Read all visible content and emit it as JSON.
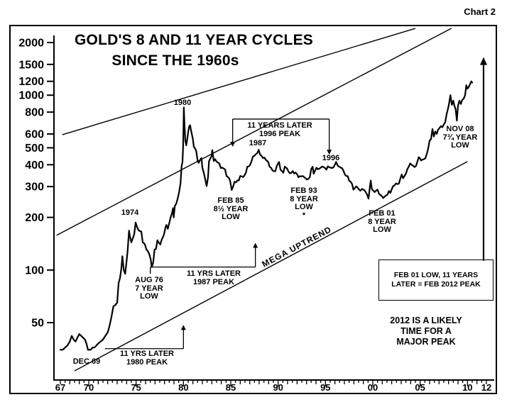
{
  "chart_label": "Chart 2",
  "chart_data": {
    "type": "line",
    "title": "GOLD'S 8 AND 11 YEAR CYCLES SINCE THE 1960s",
    "title_line1": "GOLD'S 8 AND 11 YEAR CYCLES",
    "title_line2": "SINCE THE 1960s",
    "xlabel": "",
    "ylabel": "",
    "y_axis": {
      "scale": "log",
      "ticks": [
        2000,
        1500,
        1200,
        1000,
        800,
        600,
        500,
        400,
        300,
        200,
        100,
        50
      ]
    },
    "x_axis": {
      "range": [
        1967,
        2012
      ],
      "ticks": [
        {
          "label": "67",
          "year": 1967
        },
        {
          "label": "70",
          "year": 1970
        },
        {
          "label": "75",
          "year": 1975
        },
        {
          "label": "80",
          "year": 1980
        },
        {
          "label": "85",
          "year": 1985
        },
        {
          "label": "90",
          "year": 1990
        },
        {
          "label": "95",
          "year": 1995
        },
        {
          "label": "00",
          "year": 2000
        },
        {
          "label": "05",
          "year": 2005
        },
        {
          "label": "10",
          "year": 2010
        },
        {
          "label": "12",
          "year": 2012
        }
      ]
    },
    "series": [
      [
        1967.0,
        35
      ],
      [
        1967.25,
        35
      ],
      [
        1967.5,
        36
      ],
      [
        1967.75,
        37
      ],
      [
        1968.0,
        39
      ],
      [
        1968.2,
        42
      ],
      [
        1968.4,
        40
      ],
      [
        1968.6,
        39
      ],
      [
        1968.8,
        41
      ],
      [
        1969.0,
        43
      ],
      [
        1969.2,
        42
      ],
      [
        1969.4,
        41
      ],
      [
        1969.6,
        40
      ],
      [
        1969.75,
        38
      ],
      [
        1969.92,
        35
      ],
      [
        1970.2,
        35
      ],
      [
        1970.4,
        36
      ],
      [
        1970.6,
        36
      ],
      [
        1970.8,
        37
      ],
      [
        1971.0,
        38
      ],
      [
        1971.25,
        39
      ],
      [
        1971.5,
        40
      ],
      [
        1971.75,
        42
      ],
      [
        1972.0,
        44
      ],
      [
        1972.2,
        48
      ],
      [
        1972.4,
        54
      ],
      [
        1972.6,
        62
      ],
      [
        1972.8,
        63
      ],
      [
        1973.0,
        65
      ],
      [
        1973.15,
        84
      ],
      [
        1973.3,
        90
      ],
      [
        1973.45,
        103
      ],
      [
        1973.55,
        120
      ],
      [
        1973.7,
        100
      ],
      [
        1973.85,
        95
      ],
      [
        1973.95,
        107
      ],
      [
        1974.1,
        128
      ],
      [
        1974.25,
        168
      ],
      [
        1974.35,
        155
      ],
      [
        1974.5,
        144
      ],
      [
        1974.65,
        152
      ],
      [
        1974.8,
        160
      ],
      [
        1974.95,
        187
      ],
      [
        1975.1,
        176
      ],
      [
        1975.25,
        169
      ],
      [
        1975.4,
        167
      ],
      [
        1975.55,
        166
      ],
      [
        1975.7,
        144
      ],
      [
        1975.85,
        142
      ],
      [
        1975.95,
        139
      ],
      [
        1976.1,
        131
      ],
      [
        1976.25,
        128
      ],
      [
        1976.4,
        123
      ],
      [
        1976.55,
        115
      ],
      [
        1976.65,
        104
      ],
      [
        1976.8,
        110
      ],
      [
        1976.95,
        131
      ],
      [
        1977.1,
        132
      ],
      [
        1977.25,
        148
      ],
      [
        1977.4,
        143
      ],
      [
        1977.55,
        140
      ],
      [
        1977.7,
        149
      ],
      [
        1977.85,
        155
      ],
      [
        1977.95,
        160
      ],
      [
        1978.1,
        175
      ],
      [
        1978.2,
        181
      ],
      [
        1978.35,
        172
      ],
      [
        1978.5,
        185
      ],
      [
        1978.65,
        200
      ],
      [
        1978.8,
        212
      ],
      [
        1978.9,
        226
      ],
      [
        1978.97,
        200
      ],
      [
        1979.1,
        233
      ],
      [
        1979.25,
        240
      ],
      [
        1979.4,
        257
      ],
      [
        1979.55,
        280
      ],
      [
        1979.7,
        315
      ],
      [
        1979.8,
        392
      ],
      [
        1979.9,
        415
      ],
      [
        1979.97,
        512
      ],
      [
        1980.04,
        850
      ],
      [
        1980.12,
        665
      ],
      [
        1980.2,
        550
      ],
      [
        1980.3,
        517
      ],
      [
        1980.4,
        560
      ],
      [
        1980.5,
        614
      ],
      [
        1980.6,
        660
      ],
      [
        1980.7,
        673
      ],
      [
        1980.8,
        629
      ],
      [
        1980.9,
        595
      ],
      [
        1981.0,
        557
      ],
      [
        1981.1,
        506
      ],
      [
        1981.2,
        499
      ],
      [
        1981.35,
        480
      ],
      [
        1981.5,
        422
      ],
      [
        1981.6,
        410
      ],
      [
        1981.75,
        425
      ],
      [
        1981.9,
        437
      ],
      [
        1982.0,
        384
      ],
      [
        1982.15,
        360
      ],
      [
        1982.3,
        330
      ],
      [
        1982.45,
        302
      ],
      [
        1982.6,
        340
      ],
      [
        1982.7,
        418
      ],
      [
        1982.85,
        436
      ],
      [
        1982.95,
        445
      ],
      [
        1983.05,
        485
      ],
      [
        1983.2,
        420
      ],
      [
        1983.35,
        430
      ],
      [
        1983.5,
        416
      ],
      [
        1983.65,
        412
      ],
      [
        1983.8,
        405
      ],
      [
        1983.95,
        383
      ],
      [
        1984.1,
        385
      ],
      [
        1984.25,
        381
      ],
      [
        1984.4,
        376
      ],
      [
        1984.55,
        345
      ],
      [
        1984.7,
        340
      ],
      [
        1984.85,
        333
      ],
      [
        1984.95,
        320
      ],
      [
        1985.1,
        287
      ],
      [
        1985.25,
        300
      ],
      [
        1985.4,
        320
      ],
      [
        1985.55,
        317
      ],
      [
        1985.7,
        326
      ],
      [
        1985.85,
        325
      ],
      [
        1986.0,
        345
      ],
      [
        1986.15,
        343
      ],
      [
        1986.3,
        340
      ],
      [
        1986.45,
        348
      ],
      [
        1986.6,
        360
      ],
      [
        1986.75,
        390
      ],
      [
        1986.9,
        391
      ],
      [
        1987.05,
        400
      ],
      [
        1987.2,
        420
      ],
      [
        1987.35,
        446
      ],
      [
        1987.5,
        450
      ],
      [
        1987.65,
        460
      ],
      [
        1987.8,
        466
      ],
      [
        1987.95,
        487
      ],
      [
        1988.1,
        457
      ],
      [
        1988.25,
        450
      ],
      [
        1988.4,
        437
      ],
      [
        1988.55,
        440
      ],
      [
        1988.7,
        427
      ],
      [
        1988.85,
        420
      ],
      [
        1988.95,
        415
      ],
      [
        1989.1,
        390
      ],
      [
        1989.25,
        384
      ],
      [
        1989.4,
        371
      ],
      [
        1989.55,
        368
      ],
      [
        1989.7,
        367
      ],
      [
        1989.85,
        392
      ],
      [
        1989.97,
        405
      ],
      [
        1990.1,
        415
      ],
      [
        1990.25,
        375
      ],
      [
        1990.4,
        368
      ],
      [
        1990.55,
        360
      ],
      [
        1990.7,
        390
      ],
      [
        1990.85,
        385
      ],
      [
        1990.95,
        380
      ],
      [
        1991.1,
        366
      ],
      [
        1991.25,
        357
      ],
      [
        1991.4,
        360
      ],
      [
        1991.55,
        368
      ],
      [
        1991.7,
        356
      ],
      [
        1991.85,
        361
      ],
      [
        1992.0,
        354
      ],
      [
        1992.15,
        339
      ],
      [
        1992.3,
        344
      ],
      [
        1992.45,
        343
      ],
      [
        1992.6,
        345
      ],
      [
        1992.75,
        340
      ],
      [
        1992.9,
        335
      ],
      [
        1993.05,
        329
      ],
      [
        1993.2,
        332
      ],
      [
        1993.35,
        340
      ],
      [
        1993.5,
        378
      ],
      [
        1993.65,
        390
      ],
      [
        1993.75,
        355
      ],
      [
        1993.9,
        370
      ],
      [
        1994.05,
        385
      ],
      [
        1994.2,
        377
      ],
      [
        1994.35,
        380
      ],
      [
        1994.5,
        385
      ],
      [
        1994.65,
        391
      ],
      [
        1994.8,
        388
      ],
      [
        1994.95,
        383
      ],
      [
        1995.1,
        375
      ],
      [
        1995.25,
        392
      ],
      [
        1995.4,
        387
      ],
      [
        1995.55,
        385
      ],
      [
        1995.7,
        383
      ],
      [
        1995.85,
        387
      ],
      [
        1996.05,
        405
      ],
      [
        1996.12,
        415
      ],
      [
        1996.3,
        395
      ],
      [
        1996.45,
        390
      ],
      [
        1996.6,
        385
      ],
      [
        1996.75,
        383
      ],
      [
        1996.9,
        369
      ],
      [
        1997.05,
        352
      ],
      [
        1997.2,
        345
      ],
      [
        1997.35,
        344
      ],
      [
        1997.5,
        324
      ],
      [
        1997.65,
        320
      ],
      [
        1997.8,
        311
      ],
      [
        1997.95,
        288
      ],
      [
        1998.1,
        294
      ],
      [
        1998.25,
        301
      ],
      [
        1998.4,
        296
      ],
      [
        1998.55,
        288
      ],
      [
        1998.7,
        284
      ],
      [
        1998.85,
        291
      ],
      [
        1998.97,
        288
      ],
      [
        1999.1,
        287
      ],
      [
        1999.25,
        279
      ],
      [
        1999.4,
        270
      ],
      [
        1999.55,
        256
      ],
      [
        1999.7,
        301
      ],
      [
        1999.78,
        325
      ],
      [
        1999.9,
        290
      ],
      [
        2000.05,
        284
      ],
      [
        2000.2,
        279
      ],
      [
        2000.35,
        285
      ],
      [
        2000.5,
        288
      ],
      [
        2000.65,
        273
      ],
      [
        2000.8,
        269
      ],
      [
        2000.95,
        265
      ],
      [
        2001.1,
        258
      ],
      [
        2001.25,
        263
      ],
      [
        2001.4,
        267
      ],
      [
        2001.55,
        270
      ],
      [
        2001.7,
        283
      ],
      [
        2001.85,
        276
      ],
      [
        2002.0,
        290
      ],
      [
        2002.15,
        302
      ],
      [
        2002.3,
        305
      ],
      [
        2002.45,
        313
      ],
      [
        2002.6,
        310
      ],
      [
        2002.75,
        312
      ],
      [
        2002.9,
        332
      ],
      [
        2003.05,
        352
      ],
      [
        2003.2,
        335
      ],
      [
        2003.35,
        345
      ],
      [
        2003.5,
        356
      ],
      [
        2003.65,
        378
      ],
      [
        2003.8,
        390
      ],
      [
        2003.95,
        407
      ],
      [
        2004.1,
        400
      ],
      [
        2004.25,
        395
      ],
      [
        2004.4,
        388
      ],
      [
        2004.55,
        393
      ],
      [
        2004.7,
        415
      ],
      [
        2004.85,
        442
      ],
      [
        2004.95,
        438
      ],
      [
        2005.1,
        423
      ],
      [
        2005.25,
        428
      ],
      [
        2005.4,
        430
      ],
      [
        2005.55,
        436
      ],
      [
        2005.7,
        460
      ],
      [
        2005.85,
        495
      ],
      [
        2006.0,
        550
      ],
      [
        2006.15,
        560
      ],
      [
        2006.3,
        640
      ],
      [
        2006.45,
        580
      ],
      [
        2006.6,
        620
      ],
      [
        2006.75,
        600
      ],
      [
        2006.9,
        635
      ],
      [
        2007.05,
        650
      ],
      [
        2007.2,
        665
      ],
      [
        2007.35,
        655
      ],
      [
        2007.5,
        680
      ],
      [
        2007.65,
        700
      ],
      [
        2007.8,
        780
      ],
      [
        2007.95,
        840
      ],
      [
        2008.05,
        890
      ],
      [
        2008.2,
        1000
      ],
      [
        2008.35,
        880
      ],
      [
        2008.5,
        930
      ],
      [
        2008.62,
        870
      ],
      [
        2008.75,
        830
      ],
      [
        2008.88,
        715
      ],
      [
        2009.0,
        870
      ],
      [
        2009.15,
        930
      ],
      [
        2009.3,
        890
      ],
      [
        2009.45,
        940
      ],
      [
        2009.6,
        955
      ],
      [
        2009.75,
        1000
      ],
      [
        2009.88,
        1140
      ],
      [
        2010.0,
        1090
      ],
      [
        2010.12,
        1110
      ],
      [
        2010.25,
        1150
      ],
      [
        2010.4,
        1200
      ],
      [
        2010.5,
        1180
      ]
    ],
    "trend_lines": [
      {
        "name": "upper-channel",
        "points": [
          [
            1967.2,
            594
          ],
          [
            2004.5,
            2410
          ]
        ]
      },
      {
        "name": "middle-channel",
        "points": [
          [
            1966.6,
            158
          ],
          [
            2008.3,
            2410
          ]
        ]
      },
      {
        "name": "mega-uptrend",
        "points": [
          [
            1968.5,
            26.5
          ],
          [
            2010.0,
            417
          ]
        ]
      }
    ],
    "brackets": [
      {
        "name": "cycle-1985-to-1996",
        "value": 730,
        "x_from": 1985.2,
        "x_to": 1995.4,
        "arrows": [
          {
            "x": 1985.2,
            "to": 507
          },
          {
            "x": 1995.4,
            "to": 457
          }
        ]
      },
      {
        "name": "cycle-1976-to-1987",
        "value": 104,
        "x_from": 1976.5,
        "x_to": 1987.6,
        "ticks": [
          {
            "x": 1976.5,
            "to": 95
          }
        ],
        "arrows": [
          {
            "x": 1987.6,
            "to": 143
          }
        ]
      },
      {
        "name": "cycle-1969-to-1980",
        "value": 35.5,
        "x_from": 1971.7,
        "x_to": 1980.0,
        "arrows": [
          {
            "x": 1980.0,
            "to": 48.5
          }
        ]
      }
    ],
    "big_arrow": {
      "x": 2011.7,
      "from_value": 113,
      "to_value": 1650
    },
    "annotations": {
      "peak_1980": "1980",
      "peak_1974": "1974",
      "peak_1987": "1987",
      "peak_1996": "1996",
      "later_1996": "11 YEARS LATER\n1996 PEAK",
      "feb85": "FEB 85\n8½ YEAR\nLOW",
      "feb93": "FEB 93\n8 YEAR\nLOW\n*",
      "feb01": "FEB 01\n8 YEAR\nLOW",
      "nov08": "NOV 08\n7¾ YEAR\nLOW",
      "aug76": "AUG 76\n7 YEAR\nLOW",
      "later_1987": "11 YRS LATER\n1987 PEAK",
      "dec69": "DEC 69",
      "later_1980": "11 YRS LATER\n1980 PEAK",
      "mega": "MEGA UPTREND",
      "box_feb01": "FEB 01 LOW, 11 YEARS\nLATER = FEB 2012 PEAK",
      "likely_2012": "2012 IS A LIKELY\nTIME FOR A\nMAJOR PEAK"
    }
  }
}
